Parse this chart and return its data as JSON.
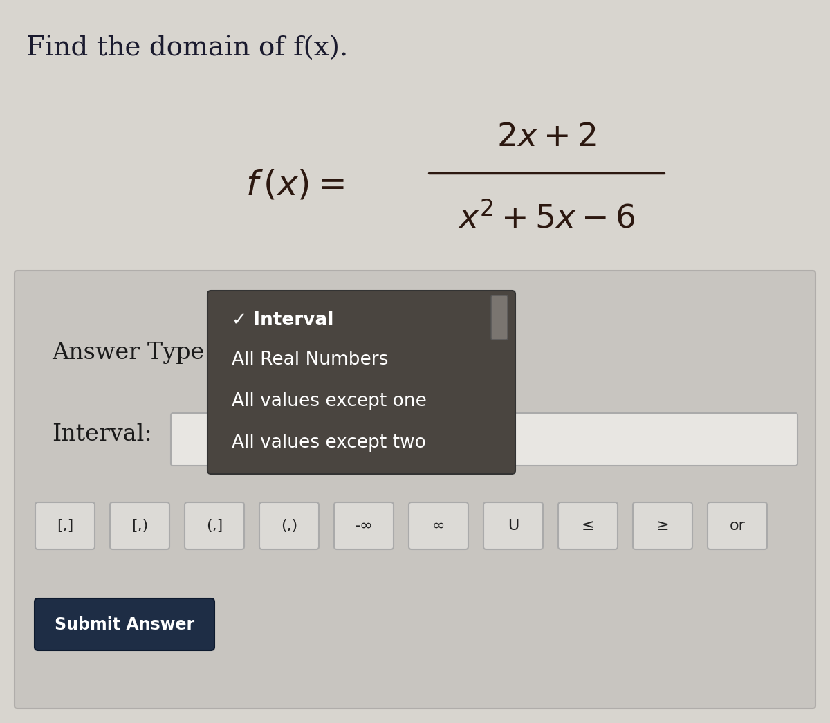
{
  "title": "Find the domain of f(x).",
  "title_fontsize": 28,
  "title_color": "#1a1a2e",
  "math_color": "#2c1810",
  "bg_color": "#d8d5cf",
  "panel_bg": "#c8c5c0",
  "panel_border": "#b0adaa",
  "answer_type_label": "Answer Type",
  "interval_label": "Interval:",
  "dropdown_bg": "#4a4540",
  "dropdown_text_color": "#ffffff",
  "dropdown_items": [
    {
      "text": "✓ Interval",
      "bold": true
    },
    {
      "text": "All Real Numbers",
      "bold": false
    },
    {
      "text": "All values except one",
      "bold": false
    },
    {
      "text": "All values except two",
      "bold": false
    }
  ],
  "button_bg": "#1e2d45",
  "button_text": "Submit Answer",
  "button_text_color": "#ffffff",
  "symbol_buttons": [
    "[,]",
    "[,)",
    "(,]",
    "(,)",
    "-∞",
    "∞",
    "U",
    "≤",
    "≥",
    "or"
  ],
  "input_box_bg": "#e8e6e2",
  "input_box_border": "#aaaaaa",
  "scroll_bar_color": "#7a7570"
}
